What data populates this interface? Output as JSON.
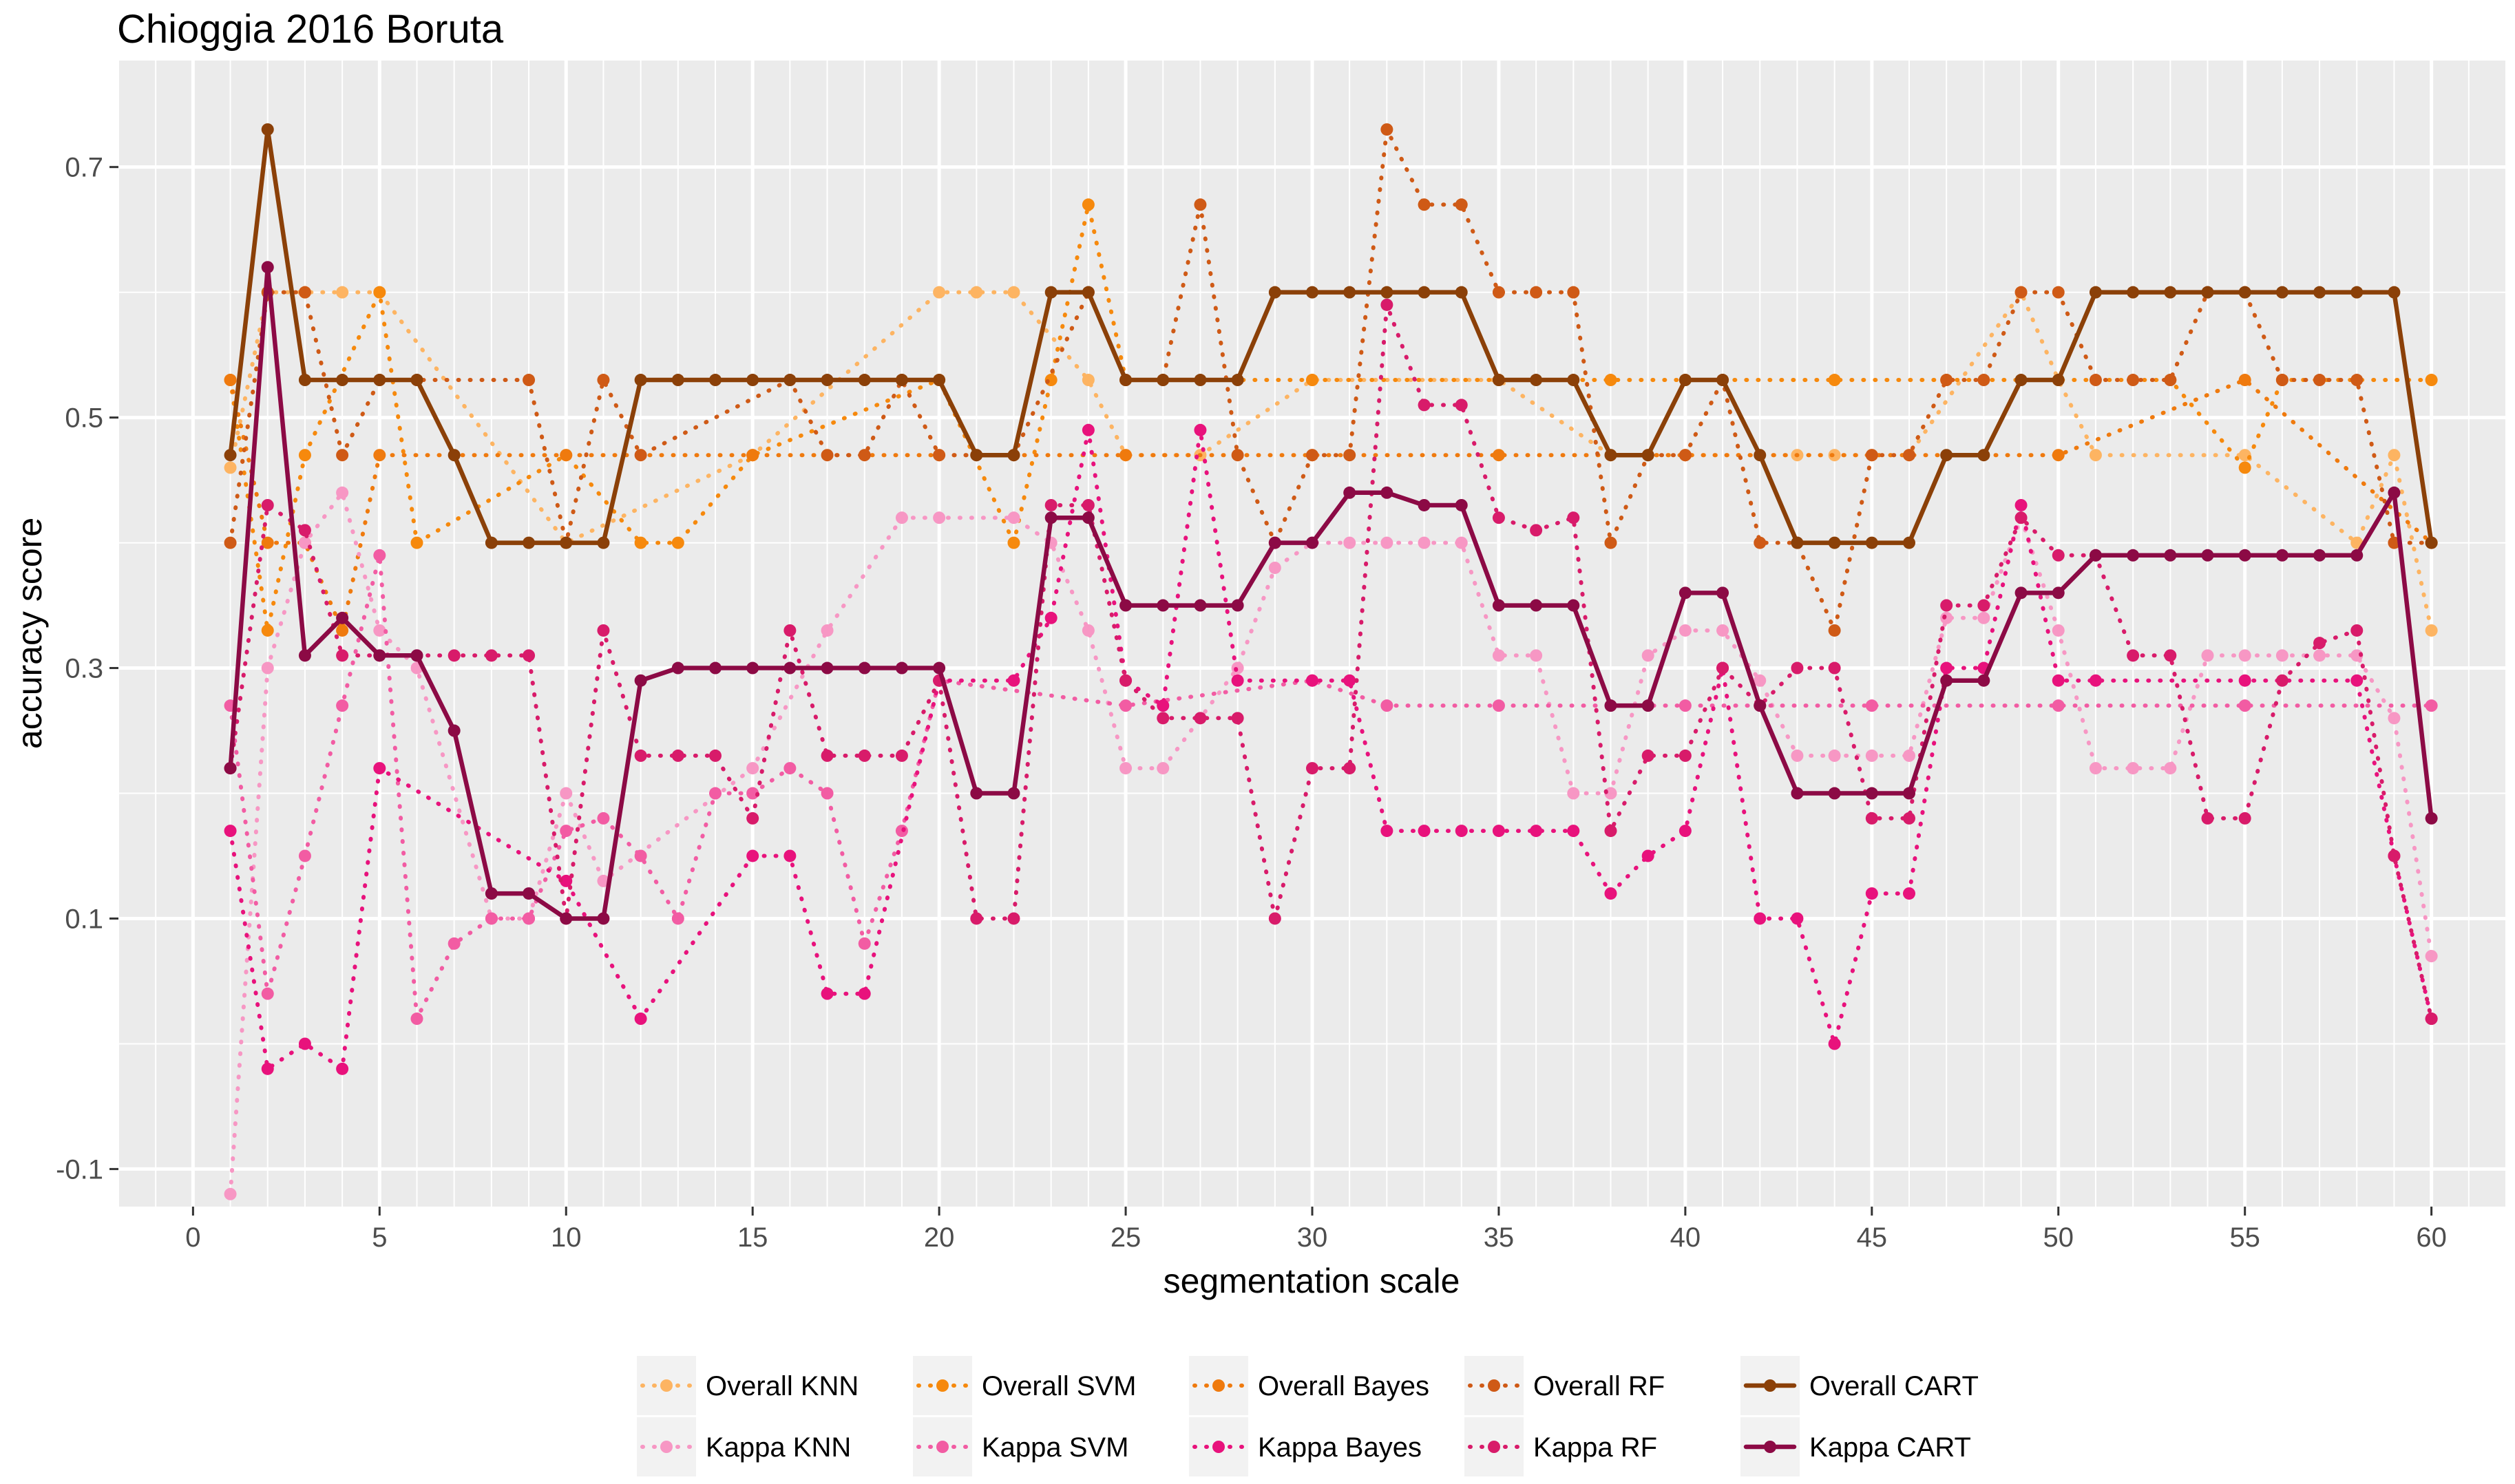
{
  "chart_data": {
    "type": "line",
    "title": "Chioggia 2016 Boruta",
    "xlabel": "segmentation scale",
    "ylabel": "accuracy score",
    "xlim": [
      -2,
      62
    ],
    "ylim": [
      -0.13,
      0.785
    ],
    "x_ticks": [
      0,
      5,
      10,
      15,
      20,
      25,
      30,
      35,
      40,
      45,
      50,
      55,
      60
    ],
    "y_ticks": [
      -0.1,
      0.1,
      0.3,
      0.5,
      0.7
    ],
    "y_tick_labels": [
      "-0.1",
      "0.1",
      "0.3",
      "0.5",
      "0.7"
    ],
    "grid": true,
    "legend_position": "bottom",
    "series": [
      {
        "name": "Overall KNN",
        "color": "#FDB462",
        "style": "dotted",
        "x": [
          1,
          2,
          3,
          4,
          5,
          10,
          15,
          20,
          21,
          22,
          24,
          25,
          27,
          30,
          35,
          38,
          40,
          43,
          44,
          46,
          49,
          50,
          51,
          55,
          58,
          59,
          60
        ],
        "y": [
          0.46,
          0.6,
          0.6,
          0.6,
          0.6,
          0.4,
          0.47,
          0.6,
          0.6,
          0.6,
          0.53,
          0.47,
          0.47,
          0.53,
          0.53,
          0.47,
          0.47,
          0.47,
          0.47,
          0.47,
          0.6,
          0.53,
          0.47,
          0.47,
          0.4,
          0.47,
          0.33
        ]
      },
      {
        "name": "Overall SVM",
        "color": "#F6890D",
        "style": "dotted",
        "x": [
          1,
          2,
          3,
          5,
          6,
          10,
          12,
          13,
          15,
          20,
          22,
          23,
          24,
          25,
          30,
          35,
          38,
          40,
          44,
          47,
          50,
          53,
          55,
          56,
          60
        ],
        "y": [
          0.53,
          0.33,
          0.47,
          0.6,
          0.4,
          0.47,
          0.4,
          0.4,
          0.47,
          0.53,
          0.4,
          0.53,
          0.67,
          0.53,
          0.53,
          0.53,
          0.53,
          0.53,
          0.53,
          0.53,
          0.53,
          0.53,
          0.46,
          0.53,
          0.53
        ]
      },
      {
        "name": "Overall Bayes",
        "color": "#EF7A0E",
        "style": "dotted",
        "x": [
          1,
          2,
          3,
          4,
          5,
          10,
          15,
          20,
          25,
          30,
          35,
          40,
          45,
          50,
          55,
          60
        ],
        "y": [
          0.53,
          0.4,
          0.4,
          0.33,
          0.47,
          0.47,
          0.47,
          0.47,
          0.47,
          0.47,
          0.47,
          0.47,
          0.47,
          0.47,
          0.53,
          0.4
        ]
      },
      {
        "name": "Overall RF",
        "color": "#CF5A16",
        "style": "dotted",
        "x": [
          1,
          2,
          3,
          4,
          5,
          6,
          9,
          10,
          11,
          12,
          16,
          17,
          18,
          19,
          20,
          21,
          22,
          24,
          25,
          26,
          27,
          28,
          29,
          30,
          31,
          32,
          33,
          34,
          35,
          36,
          37,
          38,
          39,
          40,
          41,
          42,
          43,
          44,
          45,
          46,
          47,
          48,
          49,
          50,
          51,
          52,
          53,
          54,
          55,
          56,
          57,
          58,
          59,
          60
        ],
        "y": [
          0.4,
          0.6,
          0.6,
          0.47,
          0.53,
          0.53,
          0.53,
          0.4,
          0.53,
          0.47,
          0.53,
          0.47,
          0.47,
          0.53,
          0.47,
          0.47,
          0.47,
          0.6,
          0.53,
          0.53,
          0.67,
          0.47,
          0.4,
          0.47,
          0.47,
          0.73,
          0.67,
          0.67,
          0.6,
          0.6,
          0.6,
          0.4,
          0.47,
          0.47,
          0.53,
          0.4,
          0.4,
          0.33,
          0.47,
          0.47,
          0.53,
          0.53,
          0.6,
          0.6,
          0.53,
          0.53,
          0.53,
          0.6,
          0.6,
          0.53,
          0.53,
          0.53,
          0.4,
          0.4
        ]
      },
      {
        "name": "Overall CART",
        "color": "#8B4008",
        "style": "solid",
        "x": [
          1,
          2,
          3,
          4,
          5,
          6,
          7,
          8,
          9,
          10,
          11,
          12,
          13,
          14,
          15,
          16,
          17,
          18,
          19,
          20,
          21,
          22,
          23,
          24,
          25,
          26,
          27,
          28,
          29,
          30,
          31,
          32,
          33,
          34,
          35,
          36,
          37,
          38,
          39,
          40,
          41,
          42,
          43,
          44,
          45,
          46,
          47,
          48,
          49,
          50,
          51,
          52,
          53,
          54,
          55,
          56,
          57,
          58,
          59,
          60
        ],
        "y": [
          0.47,
          0.73,
          0.53,
          0.53,
          0.53,
          0.53,
          0.47,
          0.4,
          0.4,
          0.4,
          0.4,
          0.53,
          0.53,
          0.53,
          0.53,
          0.53,
          0.53,
          0.53,
          0.53,
          0.53,
          0.47,
          0.47,
          0.6,
          0.6,
          0.53,
          0.53,
          0.53,
          0.53,
          0.6,
          0.6,
          0.6,
          0.6,
          0.6,
          0.6,
          0.53,
          0.53,
          0.53,
          0.47,
          0.47,
          0.53,
          0.53,
          0.47,
          0.4,
          0.4,
          0.4,
          0.4,
          0.47,
          0.47,
          0.53,
          0.53,
          0.6,
          0.6,
          0.6,
          0.6,
          0.6,
          0.6,
          0.6,
          0.6,
          0.6,
          0.4
        ]
      },
      {
        "name": "Kappa KNN",
        "color": "#F797C4",
        "style": "dotted",
        "x": [
          1,
          2,
          3,
          4,
          5,
          6,
          8,
          9,
          10,
          11,
          15,
          17,
          19,
          20,
          22,
          23,
          24,
          25,
          26,
          28,
          29,
          30,
          31,
          32,
          33,
          34,
          35,
          36,
          37,
          38,
          39,
          40,
          41,
          42,
          43,
          44,
          45,
          46,
          47,
          48,
          49,
          50,
          51,
          52,
          53,
          54,
          55,
          56,
          57,
          58,
          59,
          60
        ],
        "y": [
          -0.12,
          0.3,
          0.4,
          0.44,
          0.33,
          0.3,
          0.1,
          0.1,
          0.2,
          0.13,
          0.22,
          0.33,
          0.42,
          0.42,
          0.42,
          0.4,
          0.33,
          0.22,
          0.22,
          0.3,
          0.38,
          0.4,
          0.4,
          0.4,
          0.4,
          0.4,
          0.31,
          0.31,
          0.2,
          0.2,
          0.31,
          0.33,
          0.33,
          0.29,
          0.23,
          0.23,
          0.23,
          0.23,
          0.34,
          0.34,
          0.42,
          0.33,
          0.22,
          0.22,
          0.22,
          0.31,
          0.31,
          0.31,
          0.31,
          0.31,
          0.26,
          0.07
        ]
      },
      {
        "name": "Kappa SVM",
        "color": "#F25CA3",
        "style": "dotted",
        "x": [
          1,
          2,
          3,
          4,
          5,
          6,
          7,
          8,
          9,
          10,
          11,
          12,
          13,
          14,
          15,
          16,
          17,
          18,
          19,
          20,
          25,
          30,
          32,
          35,
          40,
          45,
          50,
          55,
          60
        ],
        "y": [
          0.27,
          0.04,
          0.15,
          0.27,
          0.39,
          0.02,
          0.08,
          0.1,
          0.1,
          0.17,
          0.18,
          0.15,
          0.1,
          0.2,
          0.2,
          0.22,
          0.2,
          0.08,
          0.17,
          0.29,
          0.27,
          0.29,
          0.27,
          0.27,
          0.27,
          0.27,
          0.27,
          0.27,
          0.27
        ]
      },
      {
        "name": "Kappa Bayes",
        "color": "#E8127C",
        "style": "dotted",
        "x": [
          1,
          2,
          3,
          4,
          5,
          10,
          12,
          15,
          16,
          17,
          18,
          20,
          22,
          23,
          24,
          25,
          26,
          27,
          28,
          30,
          31,
          32,
          33,
          34,
          35,
          36,
          37,
          38,
          39,
          40,
          41,
          42,
          43,
          44,
          45,
          46,
          47,
          48,
          49,
          50,
          51,
          55,
          58,
          59,
          60
        ],
        "y": [
          0.17,
          -0.02,
          0.0,
          -0.02,
          0.22,
          0.13,
          0.02,
          0.15,
          0.15,
          0.04,
          0.04,
          0.29,
          0.29,
          0.34,
          0.49,
          0.29,
          0.27,
          0.49,
          0.29,
          0.29,
          0.29,
          0.17,
          0.17,
          0.17,
          0.17,
          0.17,
          0.17,
          0.12,
          0.15,
          0.17,
          0.3,
          0.1,
          0.1,
          0.0,
          0.12,
          0.12,
          0.3,
          0.3,
          0.43,
          0.29,
          0.29,
          0.29,
          0.29,
          0.15,
          0.02
        ]
      },
      {
        "name": "Kappa RF",
        "color": "#D81B6A",
        "style": "dotted",
        "x": [
          1,
          2,
          3,
          4,
          5,
          6,
          7,
          8,
          9,
          10,
          11,
          12,
          13,
          14,
          15,
          16,
          17,
          18,
          19,
          20,
          21,
          22,
          23,
          24,
          25,
          26,
          27,
          28,
          29,
          30,
          31,
          32,
          33,
          34,
          35,
          36,
          37,
          38,
          39,
          40,
          41,
          42,
          43,
          44,
          45,
          46,
          47,
          48,
          49,
          50,
          51,
          52,
          53,
          54,
          55,
          56,
          57,
          58,
          59,
          60
        ],
        "y": [
          0.22,
          0.43,
          0.41,
          0.31,
          0.31,
          0.31,
          0.31,
          0.31,
          0.31,
          0.1,
          0.33,
          0.23,
          0.23,
          0.23,
          0.18,
          0.33,
          0.23,
          0.23,
          0.23,
          0.29,
          0.1,
          0.1,
          0.43,
          0.43,
          0.29,
          0.26,
          0.26,
          0.26,
          0.1,
          0.22,
          0.22,
          0.59,
          0.51,
          0.51,
          0.42,
          0.41,
          0.42,
          0.17,
          0.23,
          0.23,
          0.3,
          0.27,
          0.3,
          0.3,
          0.18,
          0.18,
          0.35,
          0.35,
          0.42,
          0.39,
          0.39,
          0.31,
          0.31,
          0.18,
          0.18,
          0.29,
          0.32,
          0.33,
          0.15,
          0.02
        ]
      },
      {
        "name": "Kappa CART",
        "color": "#8C0A45",
        "style": "solid",
        "x": [
          1,
          2,
          3,
          4,
          5,
          6,
          7,
          8,
          9,
          10,
          11,
          12,
          13,
          14,
          15,
          16,
          17,
          18,
          19,
          20,
          21,
          22,
          23,
          24,
          25,
          26,
          27,
          28,
          29,
          30,
          31,
          32,
          33,
          34,
          35,
          36,
          37,
          38,
          39,
          40,
          41,
          42,
          43,
          44,
          45,
          46,
          47,
          48,
          49,
          50,
          51,
          52,
          53,
          54,
          55,
          56,
          57,
          58,
          59,
          60
        ],
        "y": [
          0.22,
          0.62,
          0.31,
          0.34,
          0.31,
          0.31,
          0.25,
          0.12,
          0.12,
          0.1,
          0.1,
          0.29,
          0.3,
          0.3,
          0.3,
          0.3,
          0.3,
          0.3,
          0.3,
          0.3,
          0.2,
          0.2,
          0.42,
          0.42,
          0.35,
          0.35,
          0.35,
          0.35,
          0.4,
          0.4,
          0.44,
          0.44,
          0.43,
          0.43,
          0.35,
          0.35,
          0.35,
          0.27,
          0.27,
          0.36,
          0.36,
          0.27,
          0.2,
          0.2,
          0.2,
          0.2,
          0.29,
          0.29,
          0.36,
          0.36,
          0.39,
          0.39,
          0.39,
          0.39,
          0.39,
          0.39,
          0.39,
          0.39,
          0.44,
          0.18
        ]
      }
    ]
  }
}
